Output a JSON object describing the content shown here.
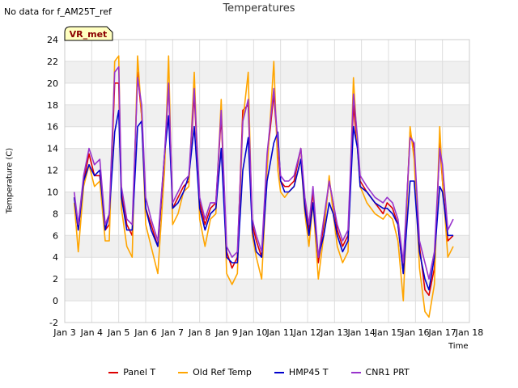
{
  "header": {
    "note": "No data for f_AM25T_ref",
    "title": "Temperatures",
    "badge": "VR_met"
  },
  "chart_data": {
    "type": "line",
    "title": "Temperatures",
    "xlabel": "Time",
    "ylabel": "Temperature (C)",
    "xlim": [
      3,
      18
    ],
    "ylim": [
      -2,
      24
    ],
    "xticks": [
      "Jan 3",
      "Jan 4",
      "Jan 5",
      "Jan 6",
      "Jan 7",
      "Jan 8",
      "Jan 9",
      "Jan 10",
      "Jan 11",
      "Jan 12",
      "Jan 13",
      "Jan 14",
      "Jan 15",
      "Jan 16",
      "Jan 17",
      "Jan 18"
    ],
    "yticks": [
      -2,
      0,
      2,
      4,
      6,
      8,
      10,
      12,
      14,
      16,
      18,
      20,
      22,
      24
    ],
    "grid": true,
    "legend_position": "bottom",
    "series": [
      {
        "name": "Panel T",
        "color": "#dd0000",
        "x": [
          3.35,
          3.5,
          3.7,
          3.9,
          4.1,
          4.3,
          4.5,
          4.65,
          4.85,
          5.0,
          5.1,
          5.3,
          5.5,
          5.7,
          5.85,
          6.0,
          6.2,
          6.45,
          6.7,
          6.85,
          7.0,
          7.2,
          7.4,
          7.6,
          7.8,
          8.0,
          8.2,
          8.4,
          8.6,
          8.8,
          9.0,
          9.2,
          9.4,
          9.6,
          9.8,
          9.95,
          10.1,
          10.3,
          10.5,
          10.75,
          10.9,
          11.0,
          11.15,
          11.3,
          11.5,
          11.75,
          11.9,
          12.05,
          12.2,
          12.4,
          12.6,
          12.8,
          12.95,
          13.1,
          13.3,
          13.5,
          13.7,
          13.85,
          13.95,
          14.2,
          14.5,
          14.8,
          14.95,
          15.15,
          15.35,
          15.55,
          15.8,
          15.95,
          16.15,
          16.35,
          16.5,
          16.7,
          16.9,
          17.0,
          17.2,
          17.4
        ],
        "y": [
          9.5,
          6.5,
          11,
          13.5,
          11.5,
          11.5,
          6.5,
          7,
          20,
          20,
          10,
          7,
          6,
          21,
          17,
          8.5,
          7,
          5,
          13,
          20,
          8.5,
          9.5,
          10.5,
          11,
          19,
          9,
          7,
          8.5,
          9,
          17,
          4.5,
          3,
          4,
          17.5,
          18,
          7,
          5.5,
          4,
          13,
          19,
          14,
          11,
          10.5,
          10.5,
          11,
          14,
          9,
          6.5,
          10,
          3.5,
          7,
          11,
          9,
          6.5,
          5,
          6,
          18,
          14,
          11,
          10,
          9,
          8,
          9,
          8.5,
          7,
          2.5,
          15.5,
          14,
          5,
          1,
          0.5,
          3,
          14.5,
          11,
          5.5,
          6
        ]
      },
      {
        "name": "Old Ref Temp",
        "color": "#ffa500",
        "x": [
          3.35,
          3.5,
          3.7,
          3.9,
          4.1,
          4.3,
          4.5,
          4.65,
          4.85,
          5.0,
          5.1,
          5.3,
          5.5,
          5.7,
          5.85,
          6.0,
          6.2,
          6.45,
          6.7,
          6.85,
          7.0,
          7.2,
          7.4,
          7.6,
          7.8,
          8.0,
          8.2,
          8.4,
          8.6,
          8.8,
          9.0,
          9.2,
          9.4,
          9.6,
          9.8,
          9.95,
          10.1,
          10.3,
          10.5,
          10.75,
          10.9,
          11.0,
          11.15,
          11.3,
          11.5,
          11.75,
          11.9,
          12.05,
          12.2,
          12.4,
          12.6,
          12.8,
          12.95,
          13.1,
          13.3,
          13.5,
          13.7,
          13.85,
          13.95,
          14.2,
          14.5,
          14.8,
          14.95,
          15.15,
          15.35,
          15.55,
          15.8,
          15.95,
          16.15,
          16.35,
          16.5,
          16.7,
          16.9,
          17.0,
          17.2,
          17.4
        ],
        "y": [
          9,
          4.5,
          10.5,
          12.5,
          10.5,
          11,
          5.5,
          5.5,
          22,
          22.5,
          8.5,
          5,
          4,
          22.5,
          17,
          7,
          5,
          2.5,
          12,
          22.5,
          7,
          8,
          10,
          10.5,
          21,
          7.5,
          5,
          7.5,
          8,
          18.5,
          2.5,
          1.5,
          2.5,
          16.5,
          21,
          6,
          4,
          2,
          12,
          22,
          12,
          10,
          9.5,
          10,
          10.5,
          13,
          8,
          5,
          9,
          2,
          6,
          11.5,
          8,
          5,
          3.5,
          4.5,
          20.5,
          14,
          10.5,
          9,
          8,
          7.5,
          8,
          7.5,
          5.5,
          0,
          16,
          13,
          3,
          -1,
          -1.5,
          1.5,
          16,
          11,
          4,
          5
        ]
      },
      {
        "name": "HMP45 T",
        "color": "#0000cc",
        "x": [
          3.35,
          3.5,
          3.7,
          3.9,
          4.1,
          4.3,
          4.5,
          4.65,
          4.85,
          5.0,
          5.1,
          5.3,
          5.5,
          5.7,
          5.85,
          6.0,
          6.2,
          6.45,
          6.7,
          6.85,
          7.0,
          7.2,
          7.4,
          7.6,
          7.8,
          8.0,
          8.2,
          8.4,
          8.6,
          8.8,
          9.0,
          9.2,
          9.4,
          9.6,
          9.8,
          9.95,
          10.1,
          10.3,
          10.5,
          10.75,
          10.9,
          11.0,
          11.15,
          11.3,
          11.5,
          11.75,
          11.9,
          12.05,
          12.2,
          12.4,
          12.6,
          12.8,
          12.95,
          13.1,
          13.3,
          13.5,
          13.7,
          13.85,
          13.95,
          14.2,
          14.5,
          14.8,
          14.95,
          15.15,
          15.35,
          15.55,
          15.8,
          15.95,
          16.15,
          16.35,
          16.5,
          16.7,
          16.9,
          17.0,
          17.2,
          17.4
        ],
        "y": [
          9.5,
          6.5,
          11,
          12.5,
          11.5,
          12,
          6.5,
          8,
          15.5,
          17.5,
          9.5,
          6.5,
          6.5,
          16,
          16.5,
          8.5,
          6.5,
          5,
          13.5,
          17,
          8.5,
          9,
          10,
          11.5,
          16,
          8.5,
          6.5,
          8,
          8.5,
          14,
          4,
          3.5,
          3.5,
          12,
          15,
          6.5,
          4.5,
          4,
          11,
          14.5,
          15.5,
          11,
          10,
          10,
          10.5,
          13,
          8.5,
          6,
          9,
          4,
          6,
          9,
          8,
          6,
          4.5,
          5.5,
          16,
          14,
          10.5,
          10,
          9,
          8.5,
          8.5,
          8,
          7,
          2.5,
          11,
          11,
          4.5,
          2,
          1,
          4,
          10.5,
          10,
          6,
          6
        ]
      },
      {
        "name": "CNR1 PRT",
        "color": "#9933cc",
        "x": [
          3.35,
          3.5,
          3.7,
          3.9,
          4.1,
          4.3,
          4.5,
          4.65,
          4.85,
          5.0,
          5.1,
          5.3,
          5.5,
          5.7,
          5.85,
          6.0,
          6.2,
          6.45,
          6.7,
          6.85,
          7.0,
          7.2,
          7.4,
          7.6,
          7.8,
          8.0,
          8.2,
          8.4,
          8.6,
          8.8,
          9.0,
          9.2,
          9.4,
          9.6,
          9.8,
          9.95,
          10.1,
          10.3,
          10.5,
          10.75,
          10.9,
          11.0,
          11.15,
          11.3,
          11.5,
          11.75,
          11.9,
          12.05,
          12.2,
          12.4,
          12.6,
          12.8,
          12.95,
          13.1,
          13.3,
          13.5,
          13.7,
          13.85,
          13.95,
          14.2,
          14.5,
          14.8,
          14.95,
          15.15,
          15.35,
          15.55,
          15.8,
          15.95,
          16.15,
          16.35,
          16.5,
          16.7,
          16.9,
          17.0,
          17.2,
          17.4
        ],
        "y": [
          10,
          7,
          11.5,
          14,
          12.5,
          13,
          7,
          8,
          21,
          21.5,
          10.5,
          7.5,
          7,
          20.5,
          18,
          9.5,
          7.5,
          5.5,
          13.5,
          20,
          9,
          10,
          11,
          11.5,
          19.5,
          9.5,
          7.5,
          9,
          9,
          17.5,
          5,
          4,
          4.5,
          16.5,
          18.5,
          7.5,
          6,
          4.5,
          13.5,
          19.5,
          14.5,
          11.5,
          11,
          11,
          11.5,
          14,
          9.5,
          7,
          10.5,
          4,
          7.5,
          11,
          9,
          7,
          5.5,
          6.5,
          19,
          15,
          11.5,
          10.5,
          9.5,
          9,
          9.5,
          9,
          7.5,
          3.5,
          15,
          14.5,
          5.5,
          3.5,
          2,
          4.5,
          14,
          12.5,
          6.5,
          7.5
        ]
      }
    ]
  }
}
